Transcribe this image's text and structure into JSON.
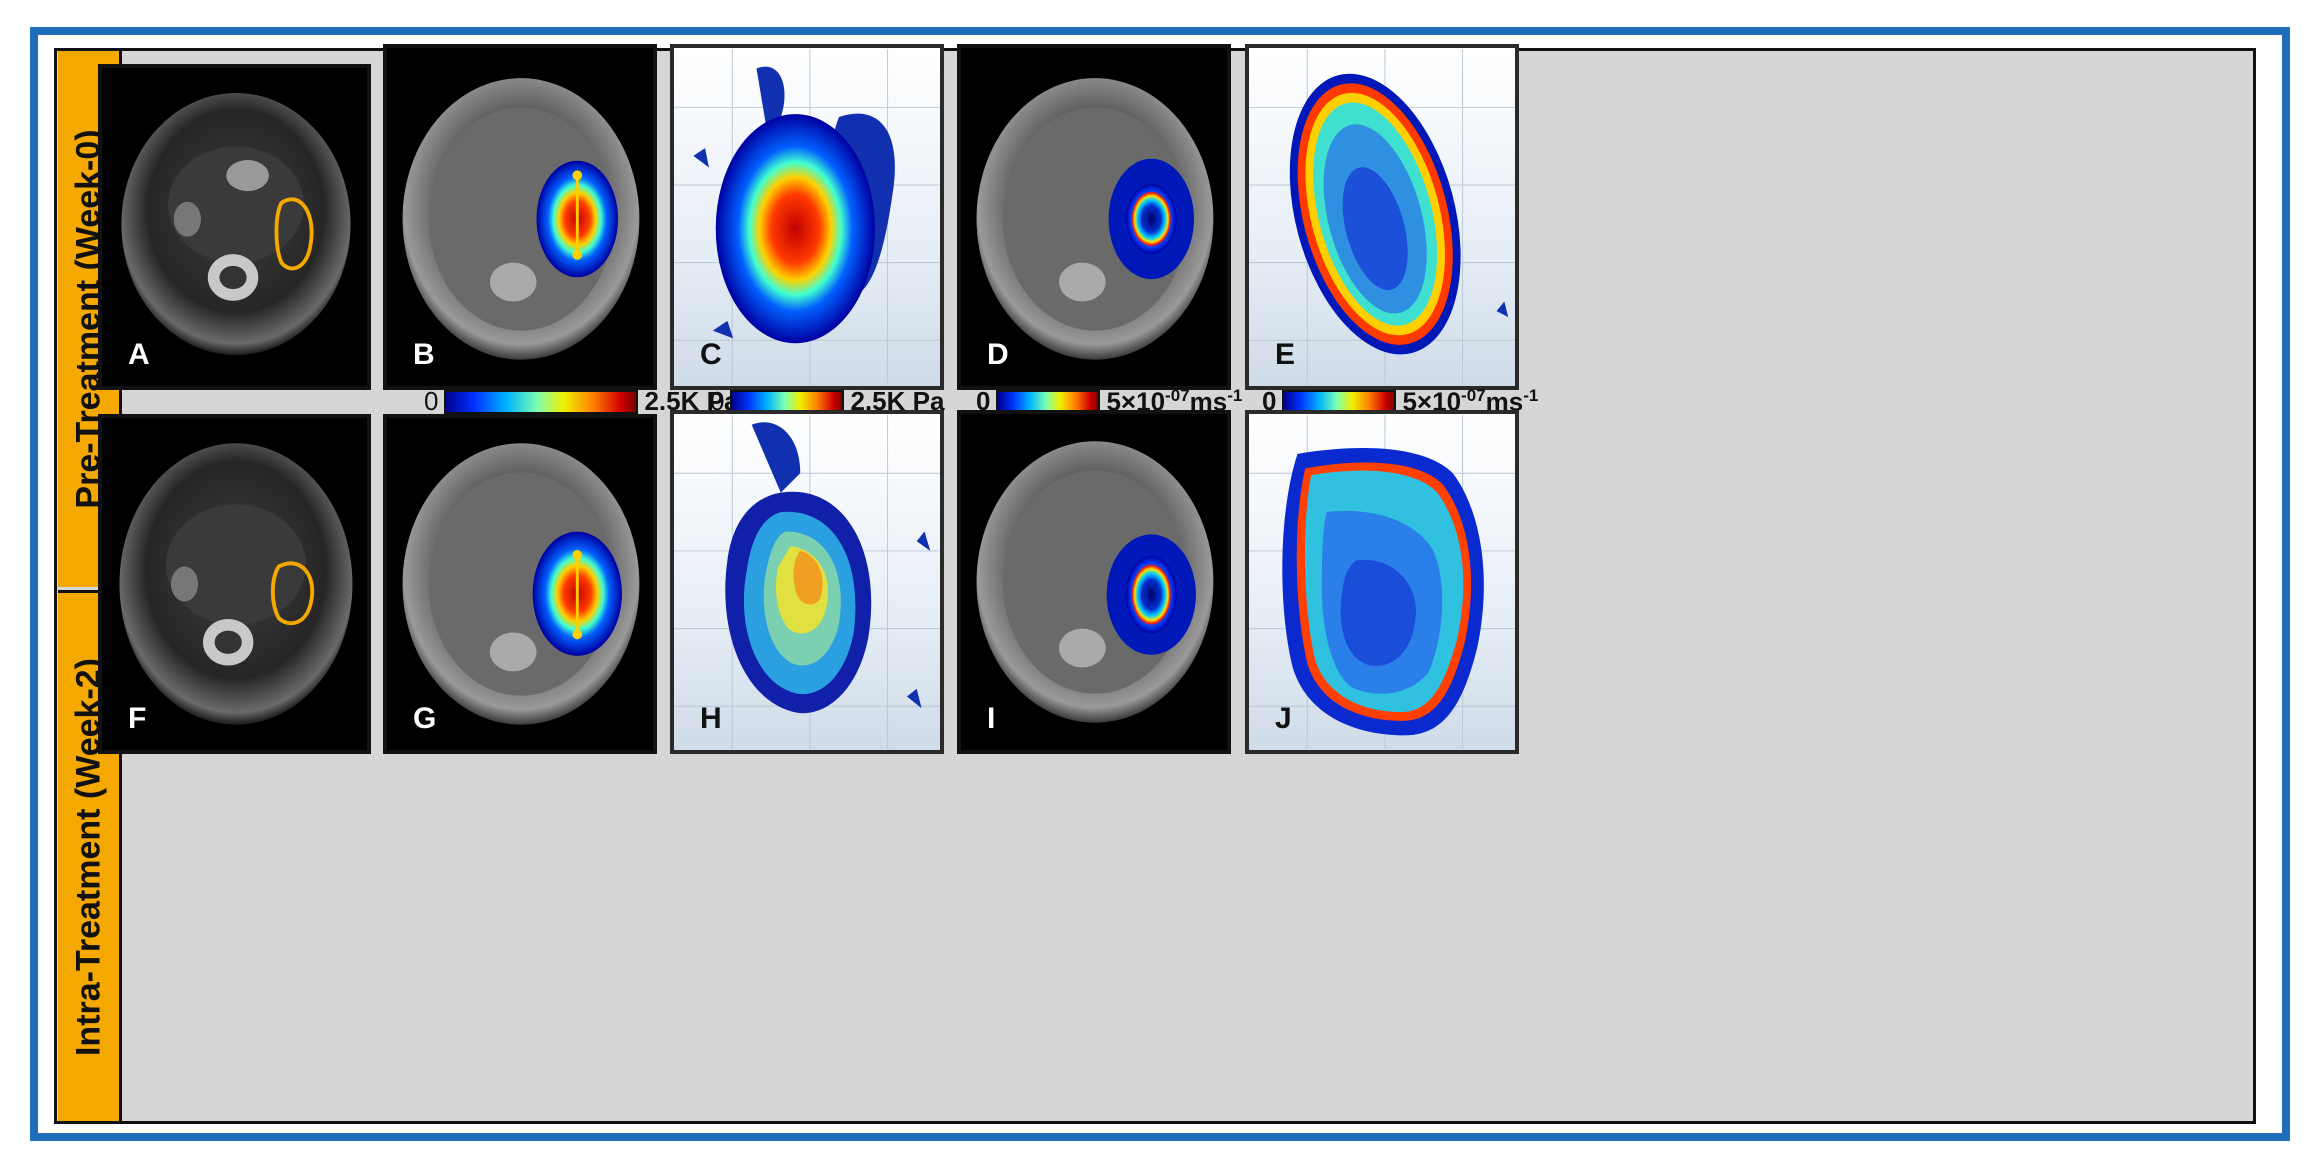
{
  "rows": [
    {
      "label": "Pre-Treatment (Week-0)"
    },
    {
      "label": "Intra-Treatment (Week-2)"
    }
  ],
  "panels": {
    "A": "A",
    "B": "B",
    "C": "C",
    "D": "D",
    "E": "E",
    "F": "F",
    "G": "G",
    "H": "H",
    "I": "I",
    "J": "J"
  },
  "colorbars": [
    {
      "min": "0",
      "max": "2.5K Pa"
    },
    {
      "min": "0",
      "max": "2.5K Pa"
    },
    {
      "min": "0",
      "max_base": "5×10",
      "max_exp": "-07",
      "max_unit": "ms",
      "max_unit_exp": "-1"
    },
    {
      "min": "0",
      "max_base": "5×10",
      "max_exp": "-07",
      "max_unit": "ms",
      "max_unit_exp": "-1"
    }
  ],
  "colors": {
    "frame_border": "#1e6fb8",
    "row_label_bg": "#f5a800",
    "tumor_boundary": "#f5a800"
  }
}
